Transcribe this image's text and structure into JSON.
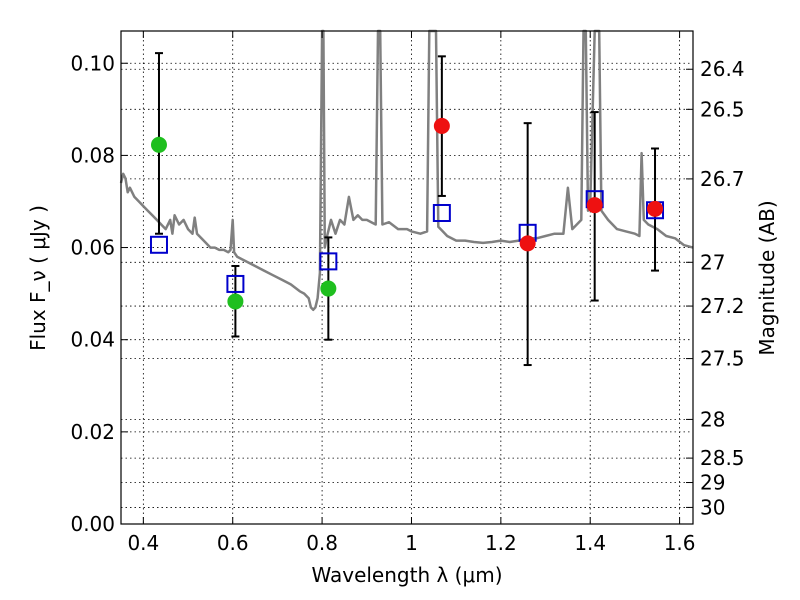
{
  "chart_data": {
    "type": "scatter",
    "title": "",
    "xlabel": "Wavelength  λ (μm)",
    "ylabel": "Flux  F_ν  ( μJy )",
    "ylabel_right": "Magnitude (AB)",
    "xlim": [
      0.35,
      1.63
    ],
    "ylim": [
      0.0,
      0.107
    ],
    "grid": true,
    "x_ticks": [
      0.4,
      0.6,
      0.8,
      1.0,
      1.2,
      1.4,
      1.6
    ],
    "x_tick_labels": [
      "0.4",
      "0.6",
      "0.8",
      "1",
      "1.2",
      "1.4",
      "1.6"
    ],
    "y_ticks": [
      0.0,
      0.02,
      0.04,
      0.06,
      0.08,
      0.1
    ],
    "y_tick_labels": [
      "0.00",
      "0.02",
      "0.04",
      "0.06",
      "0.08",
      "0.10"
    ],
    "magnitude_ticks": [
      {
        "label": "26.4",
        "flux": 0.0987
      },
      {
        "label": "26.5",
        "flux": 0.09
      },
      {
        "label": "26.7",
        "flux": 0.0749
      },
      {
        "label": "27",
        "flux": 0.0568
      },
      {
        "label": "27.2",
        "flux": 0.0473
      },
      {
        "label": "27.5",
        "flux": 0.0359
      },
      {
        "label": "28",
        "flux": 0.0227
      },
      {
        "label": "28.5",
        "flux": 0.0143
      },
      {
        "label": "29",
        "flux": 0.009
      },
      {
        "label": "30",
        "flux": 0.0036
      }
    ],
    "series": [
      {
        "marker": "circle",
        "color": "#1fbf1f",
        "points": [
          {
            "x": 0.435,
            "y": 0.0823
          },
          {
            "x": 0.606,
            "y": 0.0483
          },
          {
            "x": 0.814,
            "y": 0.0511
          }
        ]
      },
      {
        "marker": "circle",
        "color": "#ee1111",
        "points": [
          {
            "x": 1.068,
            "y": 0.0864
          },
          {
            "x": 1.26,
            "y": 0.0609
          },
          {
            "x": 1.41,
            "y": 0.0692
          },
          {
            "x": 1.545,
            "y": 0.0684
          }
        ]
      },
      {
        "marker": "open-square",
        "color": "#0000cc",
        "points": [
          {
            "x": 0.435,
            "y": 0.0606
          },
          {
            "x": 0.606,
            "y": 0.0521
          },
          {
            "x": 0.814,
            "y": 0.057
          },
          {
            "x": 1.068,
            "y": 0.0675
          },
          {
            "x": 1.26,
            "y": 0.0632
          },
          {
            "x": 1.41,
            "y": 0.0705
          },
          {
            "x": 1.545,
            "y": 0.0681
          }
        ]
      },
      {
        "marker": "errorbar",
        "color": "#000000",
        "points": [
          {
            "x": 0.435,
            "y_low": 0.063,
            "y_high": 0.1022
          },
          {
            "x": 0.606,
            "y_low": 0.0407,
            "y_high": 0.056
          },
          {
            "x": 0.814,
            "y_low": 0.04,
            "y_high": 0.0622
          },
          {
            "x": 1.068,
            "y_low": 0.0712,
            "y_high": 0.1015
          },
          {
            "x": 1.26,
            "y_low": 0.0345,
            "y_high": 0.087
          },
          {
            "x": 1.41,
            "y_low": 0.0485,
            "y_high": 0.0894
          },
          {
            "x": 1.545,
            "y_low": 0.055,
            "y_high": 0.0815
          }
        ]
      },
      {
        "marker": "line",
        "color": "#808080",
        "points": [
          [
            0.35,
            0.074
          ],
          [
            0.355,
            0.076
          ],
          [
            0.36,
            0.075
          ],
          [
            0.365,
            0.072
          ],
          [
            0.37,
            0.073
          ],
          [
            0.38,
            0.071
          ],
          [
            0.39,
            0.07
          ],
          [
            0.4,
            0.069
          ],
          [
            0.41,
            0.068
          ],
          [
            0.42,
            0.067
          ],
          [
            0.43,
            0.066
          ],
          [
            0.44,
            0.065
          ],
          [
            0.45,
            0.064
          ],
          [
            0.46,
            0.066
          ],
          [
            0.465,
            0.063
          ],
          [
            0.47,
            0.067
          ],
          [
            0.48,
            0.065
          ],
          [
            0.49,
            0.066
          ],
          [
            0.5,
            0.064
          ],
          [
            0.51,
            0.063
          ],
          [
            0.515,
            0.0665
          ],
          [
            0.52,
            0.063
          ],
          [
            0.53,
            0.062
          ],
          [
            0.54,
            0.061
          ],
          [
            0.55,
            0.06
          ],
          [
            0.56,
            0.06
          ],
          [
            0.57,
            0.0595
          ],
          [
            0.58,
            0.0595
          ],
          [
            0.59,
            0.059
          ],
          [
            0.595,
            0.0595
          ],
          [
            0.6,
            0.066
          ],
          [
            0.603,
            0.059
          ],
          [
            0.61,
            0.058
          ],
          [
            0.62,
            0.0575
          ],
          [
            0.63,
            0.057
          ],
          [
            0.65,
            0.056
          ],
          [
            0.67,
            0.055
          ],
          [
            0.69,
            0.054
          ],
          [
            0.71,
            0.053
          ],
          [
            0.73,
            0.052
          ],
          [
            0.75,
            0.0505
          ],
          [
            0.76,
            0.05
          ],
          [
            0.77,
            0.049
          ],
          [
            0.775,
            0.047
          ],
          [
            0.78,
            0.0465
          ],
          [
            0.785,
            0.047
          ],
          [
            0.79,
            0.049
          ],
          [
            0.795,
            0.0545
          ],
          [
            0.8,
            0.108
          ],
          [
            0.803,
            0.108
          ],
          [
            0.806,
            0.06
          ],
          [
            0.81,
            0.062
          ],
          [
            0.82,
            0.066
          ],
          [
            0.83,
            0.063
          ],
          [
            0.84,
            0.066
          ],
          [
            0.85,
            0.065
          ],
          [
            0.86,
            0.071
          ],
          [
            0.87,
            0.066
          ],
          [
            0.88,
            0.067
          ],
          [
            0.89,
            0.066
          ],
          [
            0.9,
            0.066
          ],
          [
            0.91,
            0.0655
          ],
          [
            0.92,
            0.065
          ],
          [
            0.925,
            0.108
          ],
          [
            0.93,
            0.108
          ],
          [
            0.935,
            0.065
          ],
          [
            0.95,
            0.0655
          ],
          [
            0.97,
            0.064
          ],
          [
            0.99,
            0.064
          ],
          [
            1.0,
            0.0635
          ],
          [
            1.02,
            0.063
          ],
          [
            1.035,
            0.0635
          ],
          [
            1.04,
            0.108
          ],
          [
            1.055,
            0.108
          ],
          [
            1.06,
            0.0645
          ],
          [
            1.07,
            0.0635
          ],
          [
            1.08,
            0.0625
          ],
          [
            1.1,
            0.0615
          ],
          [
            1.12,
            0.0615
          ],
          [
            1.14,
            0.0612
          ],
          [
            1.16,
            0.061
          ],
          [
            1.18,
            0.0612
          ],
          [
            1.2,
            0.0615
          ],
          [
            1.22,
            0.0612
          ],
          [
            1.24,
            0.0615
          ],
          [
            1.26,
            0.062
          ],
          [
            1.28,
            0.062
          ],
          [
            1.3,
            0.0625
          ],
          [
            1.32,
            0.063
          ],
          [
            1.34,
            0.063
          ],
          [
            1.35,
            0.073
          ],
          [
            1.36,
            0.064
          ],
          [
            1.37,
            0.065
          ],
          [
            1.38,
            0.066
          ],
          [
            1.385,
            0.108
          ],
          [
            1.39,
            0.108
          ],
          [
            1.395,
            0.068
          ],
          [
            1.4,
            0.069
          ],
          [
            1.41,
            0.108
          ],
          [
            1.42,
            0.108
          ],
          [
            1.425,
            0.068
          ],
          [
            1.44,
            0.066
          ],
          [
            1.46,
            0.064
          ],
          [
            1.48,
            0.0635
          ],
          [
            1.5,
            0.063
          ],
          [
            1.51,
            0.0625
          ],
          [
            1.515,
            0.0805
          ],
          [
            1.52,
            0.066
          ],
          [
            1.53,
            0.065
          ],
          [
            1.55,
            0.064
          ],
          [
            1.57,
            0.0625
          ],
          [
            1.59,
            0.062
          ],
          [
            1.61,
            0.0605
          ],
          [
            1.63,
            0.06
          ]
        ]
      }
    ]
  }
}
